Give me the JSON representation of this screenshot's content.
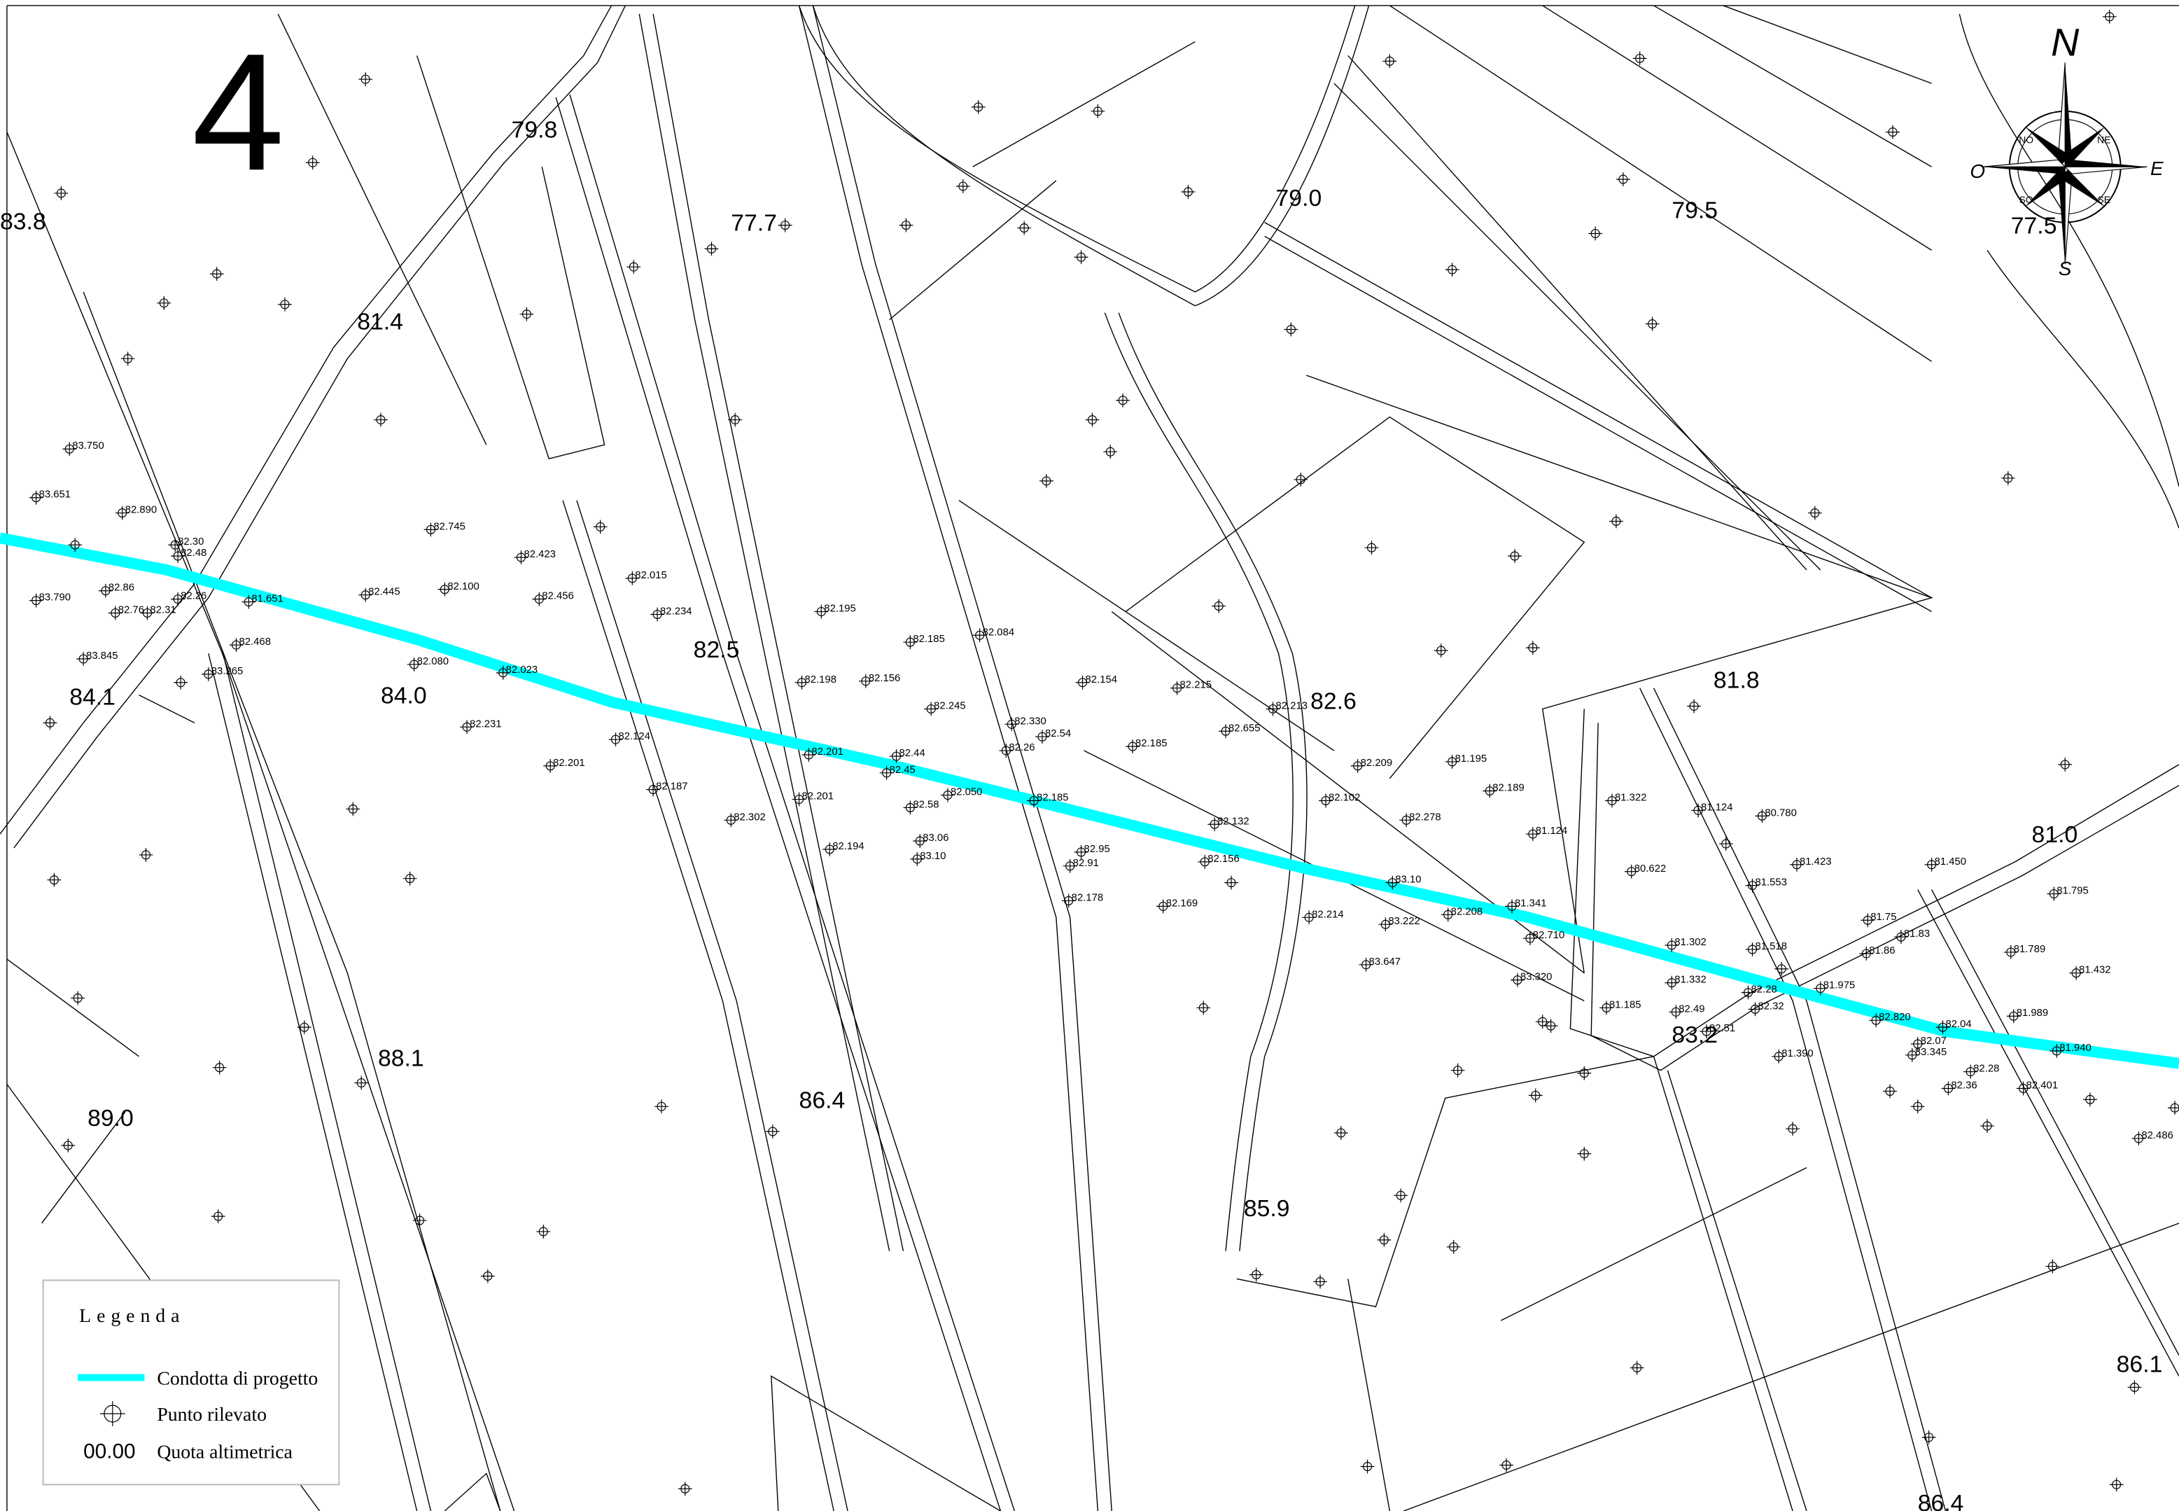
{
  "sheet_number": "4",
  "compass": {
    "north": "N",
    "south": "S",
    "east": "E",
    "west": "O",
    "ne": "NE",
    "nw": "NO",
    "se": "SE",
    "sw": "SO"
  },
  "elevations": [
    "83.8",
    "79.8",
    "77.7",
    "79.0",
    "79.5",
    "77.5",
    "81.4",
    "84.1",
    "84.0",
    "82.5",
    "82.6",
    "81.8",
    "81.0",
    "88.1",
    "89.0",
    "86.4",
    "85.9",
    "83.2",
    "86.1",
    "86.4"
  ],
  "spot_heights": [
    "83.750",
    "83.651",
    "82.890",
    "82.30",
    "82.48",
    "83.790",
    "82.86",
    "82.76",
    "82.31",
    "82.26",
    "81.651",
    "83.845",
    "82.468",
    "83.265",
    "82.745",
    "82.423",
    "82.445",
    "82.100",
    "82.456",
    "82.015",
    "82.234",
    "82.080",
    "82.023",
    "82.231",
    "82.201",
    "82.124",
    "82.187",
    "82.302",
    "82.195",
    "82.198",
    "82.156",
    "82.185",
    "82.084",
    "82.245",
    "82.330",
    "82.154",
    "82.215",
    "82.213",
    "82.655",
    "82.185",
    "82.201",
    "82.44",
    "82.45",
    "82.201",
    "82.58",
    "82.050",
    "82.185",
    "82.194",
    "83.06",
    "83.10",
    "82.95",
    "82.91",
    "82.178",
    "82.132",
    "82.156",
    "82.169",
    "82.209",
    "81.195",
    "82.189",
    "82.102",
    "82.278",
    "81.124",
    "83.10",
    "82.208",
    "81.341",
    "82.214",
    "83.222",
    "82.710",
    "83.647",
    "83.320",
    "81.322",
    "81.124",
    "80.780",
    "80.622",
    "81.553",
    "81.423",
    "81.302",
    "81.518",
    "81.332",
    "81.185",
    "82.49",
    "82.51",
    "82.28",
    "82.32",
    "81.975",
    "81.390",
    "81.450",
    "81.795",
    "81.75",
    "81.86",
    "81.83",
    "81.789",
    "81.432",
    "82.820",
    "82.04",
    "82.07",
    "83.345",
    "82.28",
    "82.36",
    "82.401",
    "81.989",
    "81.940",
    "82.486",
    "82.26",
    "82.54"
  ],
  "legend": {
    "title": "Legenda",
    "items": [
      {
        "label": "Condotta di progetto"
      },
      {
        "label": "Punto rilevato"
      },
      {
        "symbol": "00.00",
        "label": "Quota altimetrica"
      }
    ]
  }
}
